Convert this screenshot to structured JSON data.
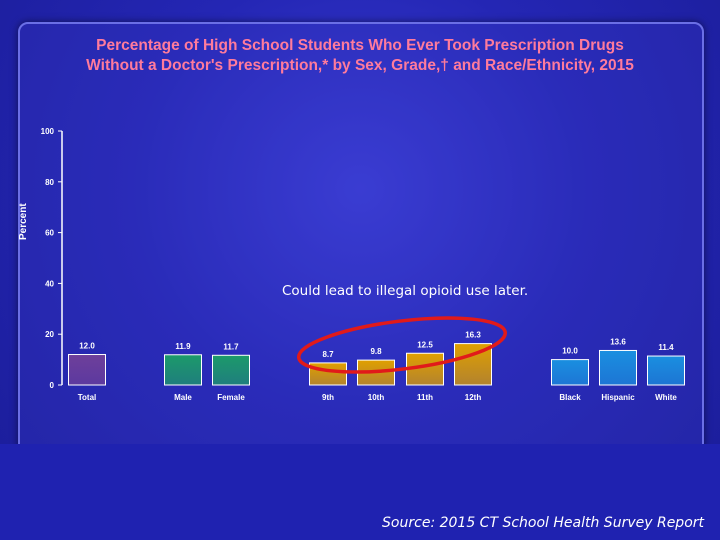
{
  "slide": {
    "title_line1": "Percentage of High School Students Who Ever Took Prescription Drugs",
    "title_line2": "Without a Doctor's Prescription,* by Sex, Grade,† and Race/Ethnicity, 2015",
    "annotation": "Could lead to illegal opioid use later.",
    "source": "Source: 2015 CT School Health Survey Report"
  },
  "colors": {
    "title": "#ff7b9c",
    "total": "#6e3f9a",
    "sex": "#1c9a6a",
    "grade": "#e0a000",
    "race": "#1a8fe0",
    "highlight_ellipse": "#e11a1a"
  },
  "chart_data": {
    "type": "bar",
    "title": "Percentage of High School Students Who Ever Took Prescription Drugs Without a Doctor's Prescription,* by Sex, Grade,† and Race/Ethnicity, 2015",
    "ylabel": "Percent",
    "xlabel": "",
    "ylim": [
      0,
      100
    ],
    "yticks": [
      0,
      20,
      40,
      60,
      80,
      100
    ],
    "grid": false,
    "categories": [
      "Total",
      "Male",
      "Female",
      "9th",
      "10th",
      "11th",
      "12th",
      "Black",
      "Hispanic",
      "White"
    ],
    "values": [
      12.0,
      11.9,
      11.7,
      8.7,
      9.8,
      12.5,
      16.3,
      10.0,
      13.6,
      11.4
    ],
    "value_labels": [
      "12.0",
      "11.9",
      "11.7",
      "8.7",
      "9.8",
      "12.5",
      "16.3",
      "10.0",
      "13.6",
      "11.4"
    ],
    "groups": [
      "total",
      "sex",
      "sex",
      "grade",
      "grade",
      "grade",
      "grade",
      "race",
      "race",
      "race"
    ]
  }
}
